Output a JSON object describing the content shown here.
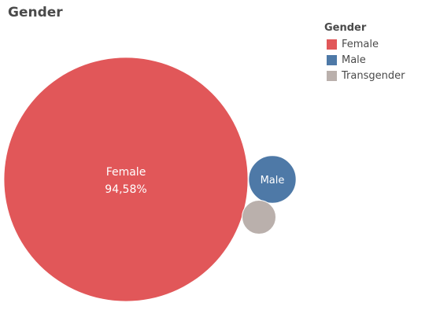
{
  "chart_data": {
    "type": "bubble",
    "title": "Gender",
    "legend": {
      "title": "Gender",
      "placement": "top-right"
    },
    "series": [
      {
        "name": "Female",
        "share_label": "94,58%",
        "value": 94.58,
        "color": "#e15759"
      },
      {
        "name": "Male",
        "value": 3.6,
        "color": "#4e79a7"
      },
      {
        "name": "Transgender",
        "value": 1.82,
        "color": "#bab0ac"
      }
    ]
  }
}
